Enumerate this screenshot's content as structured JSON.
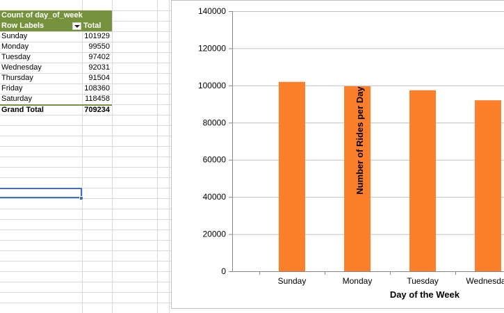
{
  "pivot": {
    "title": "Count of day_of_week",
    "col_row_labels": "Row Labels",
    "col_total": "Total",
    "rows": [
      {
        "label": "Sunday",
        "value": "101929"
      },
      {
        "label": "Monday",
        "value": "99550"
      },
      {
        "label": "Tuesday",
        "value": "97402"
      },
      {
        "label": "Wednesday",
        "value": "92031"
      },
      {
        "label": "Thursday",
        "value": "91504"
      },
      {
        "label": "Friday",
        "value": "108360"
      },
      {
        "label": "Saturday",
        "value": "118458"
      }
    ],
    "grand_total_label": "Grand Total",
    "grand_total_value": "709234",
    "header_color": "#76923c"
  },
  "chart_data": {
    "type": "bar",
    "categories": [
      "Sunday",
      "Monday",
      "Tuesday",
      "Wednesday"
    ],
    "values": [
      101929,
      99550,
      97402,
      92031
    ],
    "xlabel": "Day of the Week",
    "ylabel": "Number of Rides per Day",
    "ylim": [
      0,
      140000
    ],
    "yticks": [
      0,
      20000,
      40000,
      60000,
      80000,
      100000,
      120000,
      140000
    ],
    "grid": true,
    "bar_color": "#fd7f2c"
  }
}
